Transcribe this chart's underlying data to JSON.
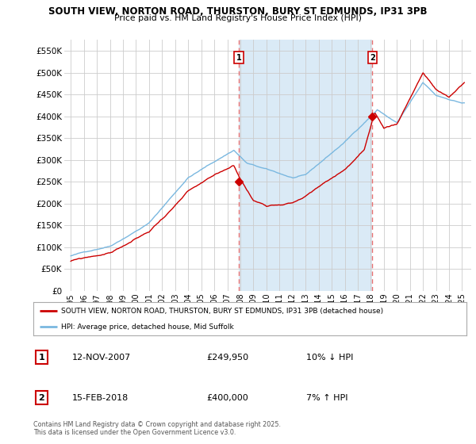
{
  "title1": "SOUTH VIEW, NORTON ROAD, THURSTON, BURY ST EDMUNDS, IP31 3PB",
  "title2": "Price paid vs. HM Land Registry's House Price Index (HPI)",
  "xlim_start": 1994.5,
  "xlim_end": 2025.7,
  "ylim": [
    0,
    575000
  ],
  "yticks": [
    0,
    50000,
    100000,
    150000,
    200000,
    250000,
    300000,
    350000,
    400000,
    450000,
    500000,
    550000
  ],
  "ytick_labels": [
    "£0",
    "£50K",
    "£100K",
    "£150K",
    "£200K",
    "£250K",
    "£300K",
    "£350K",
    "£400K",
    "£450K",
    "£500K",
    "£550K"
  ],
  "xticks": [
    1995,
    1996,
    1997,
    1998,
    1999,
    2000,
    2001,
    2002,
    2003,
    2004,
    2005,
    2006,
    2007,
    2008,
    2009,
    2010,
    2011,
    2012,
    2013,
    2014,
    2015,
    2016,
    2017,
    2018,
    2019,
    2020,
    2021,
    2022,
    2023,
    2024,
    2025
  ],
  "hpi_color": "#7ab8e0",
  "price_color": "#cc0000",
  "vline_color": "#e87070",
  "shade_color": "#daeaf6",
  "marker1_x": 2007.87,
  "marker1_y": 249950,
  "marker2_x": 2018.12,
  "marker2_y": 400000,
  "legend_label1": "SOUTH VIEW, NORTON ROAD, THURSTON, BURY ST EDMUNDS, IP31 3PB (detached house)",
  "legend_label2": "HPI: Average price, detached house, Mid Suffolk",
  "note1_date": "12-NOV-2007",
  "note1_price": "£249,950",
  "note1_hpi": "10% ↓ HPI",
  "note2_date": "15-FEB-2018",
  "note2_price": "£400,000",
  "note2_hpi": "7% ↑ HPI",
  "copyright": "Contains HM Land Registry data © Crown copyright and database right 2025.\nThis data is licensed under the Open Government Licence v3.0.",
  "bg_color": "#ffffff",
  "chart_bg": "#ffffff",
  "grid_color": "#cccccc"
}
